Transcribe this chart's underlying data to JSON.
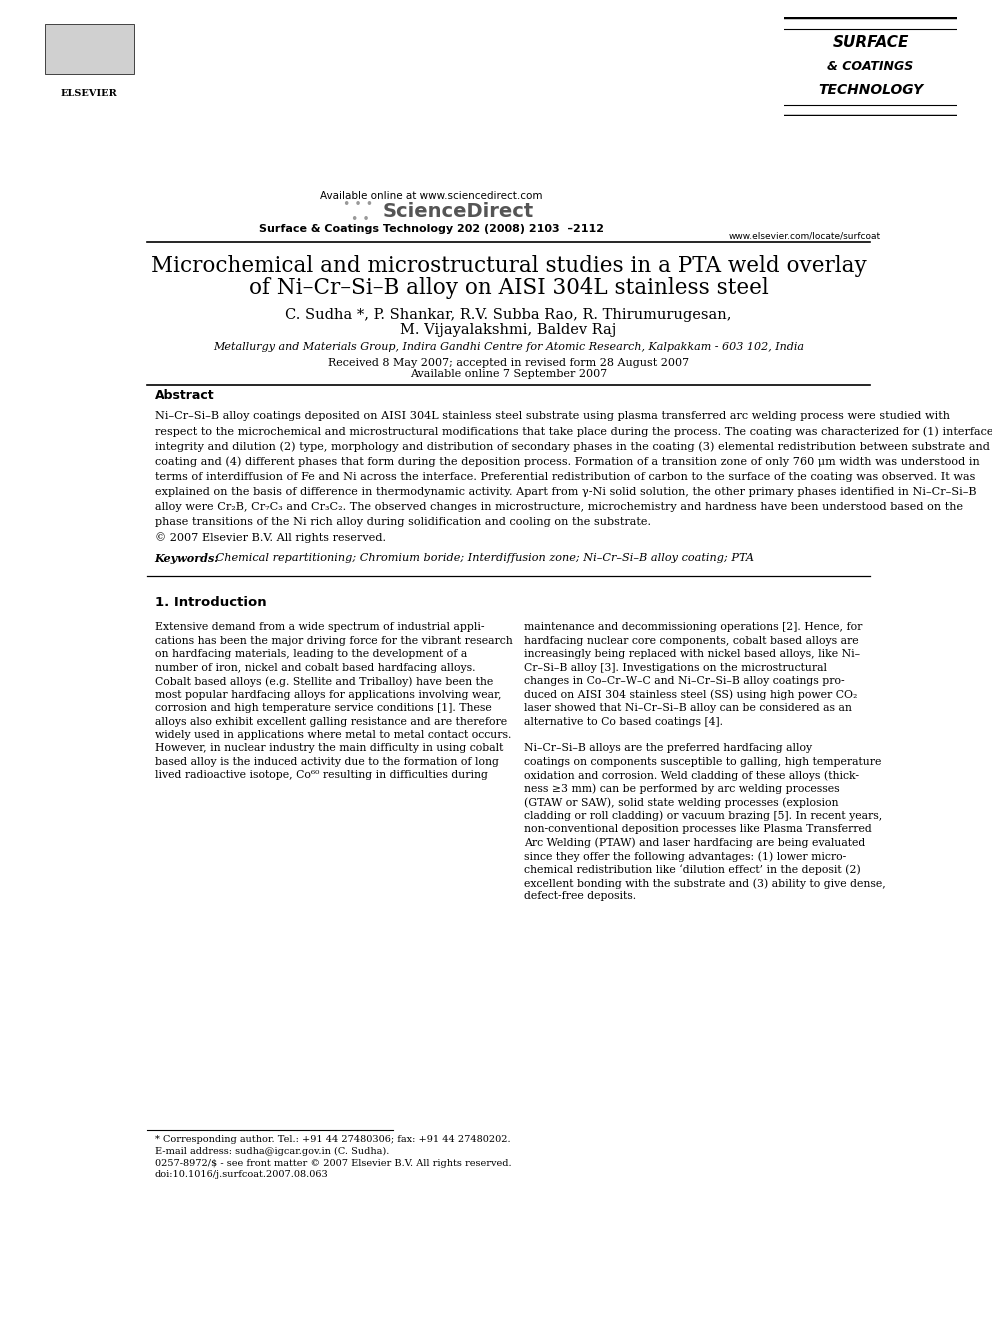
{
  "bg_color": "#ffffff",
  "page_width": 9.92,
  "page_height": 13.23,
  "header": {
    "available_online": "Available online at www.sciencedirect.com",
    "sciencedirect": "ScienceDirect",
    "journal_line": "Surface & Coatings Technology 202 (2008) 2103  –2112",
    "journal_name_line1": "SURFACE",
    "journal_name_line2": "& COATINGS",
    "journal_name_line3": "TECHNOLOGY",
    "elsevier": "ELSEVIER",
    "website": "www.elsevier.com/locate/surfcoat"
  },
  "title_line1": "Microchemical and microstructural studies in a PTA weld overlay",
  "title_line2": "of Ni–Cr–Si–B alloy on AISI 304L stainless steel",
  "authors": "C. Sudha *, P. Shankar, R.V. Subba Rao, R. Thirumurugesan,",
  "authors2": "M. Vijayalakshmi, Baldev Raj",
  "affiliation": "Metallurgy and Materials Group, Indira Gandhi Centre for Atomic Research, Kalpakkam - 603 102, India",
  "received": "Received 8 May 2007; accepted in revised form 28 August 2007",
  "available": "Available online 7 September 2007",
  "abstract_label": "Abstract",
  "abstract_text": "Ni–Cr–Si–B alloy coatings deposited on AISI 304L stainless steel substrate using plasma transferred arc welding process were studied with\nrespect to the microchemical and microstructural modifications that take place during the process. The coating was characterized for (1) interface\nintegrity and dilution (2) type, morphology and distribution of secondary phases in the coating (3) elemental redistribution between substrate and\ncoating and (4) different phases that form during the deposition process. Formation of a transition zone of only 760 μm width was understood in\nterms of interdiffusion of Fe and Ni across the interface. Preferential redistribution of carbon to the surface of the coating was observed. It was\nexplained on the basis of difference in thermodynamic activity. Apart from γ-Ni solid solution, the other primary phases identified in Ni–Cr–Si–B\nalloy were Cr₂B, Cr₇C₃ and Cr₃C₂. The observed changes in microstructure, microchemistry and hardness have been understood based on the\nphase transitions of the Ni rich alloy during solidification and cooling on the substrate.\n© 2007 Elsevier B.V. All rights reserved.",
  "keywords_label": "Keywords:",
  "keywords_text": " Chemical repartitioning; Chromium boride; Interdiffusion zone; Ni–Cr–Si–B alloy coating; PTA",
  "section1_label": "1. Introduction",
  "intro_col1_para1": "Extensive demand from a wide spectrum of industrial appli-\ncations has been the major driving force for the vibrant research\non hardfacing materials, leading to the development of a\nnumber of iron, nickel and cobalt based hardfacing alloys.\nCobalt based alloys (e.g. Stellite and Triballoy) have been the\nmost popular hardfacing alloys for applications involving wear,\ncorrosion and high temperature service conditions [1]. These\nalloys also exhibit excellent galling resistance and are therefore\nwidely used in applications where metal to metal contact occurs.\nHowever, in nuclear industry the main difficulty in using cobalt\nbased alloy is the induced activity due to the formation of long\nlived radioactive isotope, Co⁶⁰ resulting in difficulties during",
  "intro_col2_para1": "maintenance and decommissioning operations [2]. Hence, for\nhardfacing nuclear core components, cobalt based alloys are\nincreasingly being replaced with nickel based alloys, like Ni–\nCr–Si–B alloy [3]. Investigations on the microstructural\nchanges in Co–Cr–W–C and Ni–Cr–Si–B alloy coatings pro-\nduced on AISI 304 stainless steel (SS) using high power CO₂\nlaser showed that Ni–Cr–Si–B alloy can be considered as an\nalternative to Co based coatings [4].\n\nNi–Cr–Si–B alloys are the preferred hardfacing alloy\ncoatings on components susceptible to galling, high temperature\noxidation and corrosion. Weld cladding of these alloys (thick-\nness ≥3 mm) can be performed by arc welding processes\n(GTAW or SAW), solid state welding processes (explosion\ncladding or roll cladding) or vacuum brazing [5]. In recent years,\nnon-conventional deposition processes like Plasma Transferred\nArc Welding (PTAW) and laser hardfacing are being evaluated\nsince they offer the following advantages: (1) lower micro-\nchemical redistribution like ‘dilution effect’ in the deposit (2)\nexcellent bonding with the substrate and (3) ability to give dense,\ndefect-free deposits.",
  "footnote_star": "* Corresponding author. Tel.: +91 44 27480306; fax: +91 44 27480202.",
  "footnote_email": "E-mail address: sudha@igcar.gov.in (C. Sudha).",
  "footnote_issn": "0257-8972/$ - see front matter © 2007 Elsevier B.V. All rights reserved.",
  "footnote_doi": "doi:10.1016/j.surfcoat.2007.08.063"
}
